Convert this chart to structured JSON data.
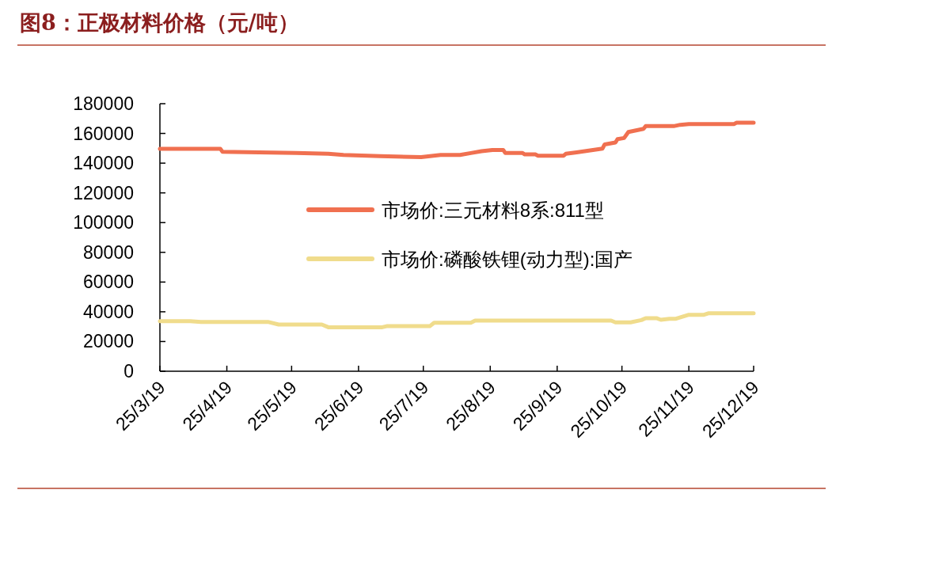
{
  "chart_data": {
    "type": "line",
    "title": "图8：正极材料价格（元/吨）",
    "xlim": [
      "--03-19",
      "--12-19"
    ],
    "xticks": [
      {
        "value": "--03-19",
        "label": "25/3/19"
      },
      {
        "value": "--04-19",
        "label": "25/4/19"
      },
      {
        "value": "--05-19",
        "label": "25/5/19"
      },
      {
        "value": "--06-19",
        "label": "25/6/19"
      },
      {
        "value": "--07-19",
        "label": "25/7/19"
      },
      {
        "value": "--08-19",
        "label": "25/8/19"
      },
      {
        "value": "--09-19",
        "label": "25/9/19"
      },
      {
        "value": "--10-19",
        "label": "25/10/19"
      },
      {
        "value": "--11-19",
        "label": "25/11/19"
      },
      {
        "value": "--12-19",
        "label": "25/12/19"
      }
    ],
    "ylim": [
      0,
      180000
    ],
    "yticks": [
      0,
      20000,
      40000,
      60000,
      80000,
      100000,
      120000,
      140000,
      160000,
      180000
    ],
    "legend": "center",
    "series": [
      {
        "name": "市场价:三元材料8系:811型",
        "color": "#f07050",
        "x": [
          "--03-19",
          "--04-16",
          "--04-17",
          "--05-21",
          "--06-05",
          "--06-12",
          "--06-29",
          "--07-18",
          "--07-27",
          "--08-05",
          "--08-10",
          "--08-15",
          "--08-20",
          "--08-25",
          "--08-26",
          "--09-03",
          "--09-04",
          "--09-09",
          "--09-10",
          "--09-22",
          "--09-23",
          "--09-28",
          "--10-10",
          "--10-11",
          "--10-16",
          "--10-17",
          "--10-20",
          "--10-22",
          "--10-29",
          "--10-30",
          "--11-12",
          "--11-15",
          "--11-19",
          "--12-10",
          "--12-11",
          "--12-19"
        ],
        "values": [
          149600,
          149600,
          147700,
          146800,
          146300,
          145500,
          144700,
          144100,
          145500,
          145500,
          146800,
          148000,
          148900,
          148900,
          146800,
          146800,
          145900,
          145900,
          145000,
          145000,
          146300,
          147300,
          149800,
          152600,
          153900,
          156200,
          156900,
          161000,
          163100,
          164900,
          164900,
          165800,
          166300,
          166300,
          167200,
          167200
        ]
      },
      {
        "name": "市场价:磷酸铁锂(动力型):国产",
        "color": "#f0dc8c",
        "x": [
          "--03-19",
          "--04-02",
          "--04-07",
          "--05-08",
          "--05-13",
          "--06-02",
          "--06-05",
          "--06-30",
          "--07-02",
          "--07-22",
          "--07-24",
          "--08-10",
          "--08-12",
          "--10-14",
          "--10-16",
          "--10-23",
          "--10-28",
          "--10-30",
          "--11-04",
          "--11-06",
          "--11-10",
          "--11-13",
          "--11-19",
          "--11-26",
          "--11-28",
          "--12-19"
        ],
        "values": [
          33700,
          33700,
          33200,
          33200,
          31400,
          31400,
          29600,
          29600,
          30300,
          30300,
          32600,
          32600,
          34100,
          34100,
          32900,
          32900,
          34400,
          35700,
          35700,
          34600,
          35300,
          35300,
          38000,
          38000,
          39000,
          39000
        ]
      }
    ]
  }
}
